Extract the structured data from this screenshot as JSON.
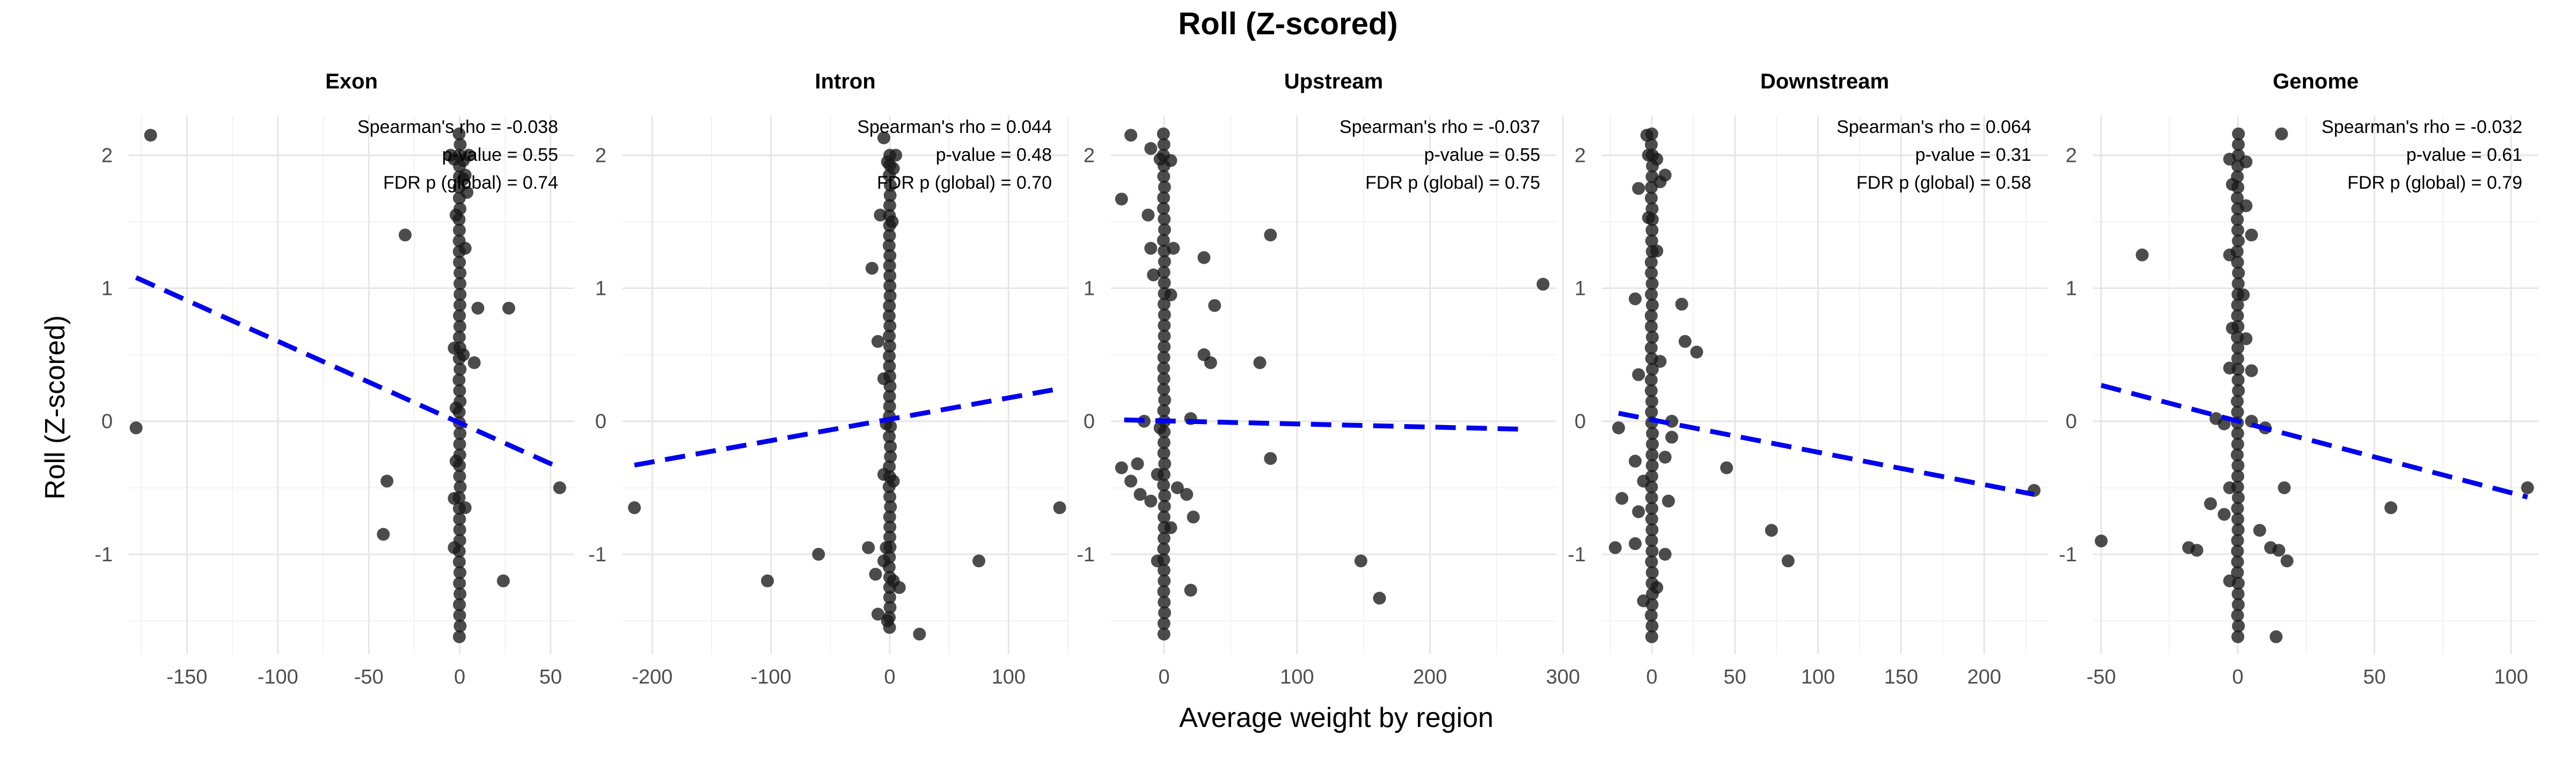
{
  "chart_data": {
    "type": "scatter",
    "title": "Roll (Z-scored)",
    "xlabel": "Average weight by region",
    "ylabel": "Roll (Z-scored)",
    "ylim": [
      -1.75,
      2.3
    ],
    "y_ticks": [
      -1,
      0,
      1,
      2
    ],
    "grid": true,
    "legend": "none",
    "fit_line_color": "#0000ee",
    "point_color": "#1a1a1a",
    "panels": [
      {
        "name": "Exon",
        "xlim": [
          -182,
          63
        ],
        "x_ticks": [
          -150,
          -100,
          -50,
          0,
          50
        ],
        "annotation": [
          "Spearman's rho = -0.038",
          "p-value = 0.55",
          "FDR p (global) = 0.74"
        ],
        "fit": [
          [
            -178,
            1.08
          ],
          [
            55,
            -0.35
          ]
        ],
        "cluster": [
          -1.62,
          2.16
        ],
        "points": [
          [
            -170,
            2.15
          ],
          [
            -178,
            -0.05
          ],
          [
            -30,
            1.4
          ],
          [
            -40,
            -0.45
          ],
          [
            -42,
            -0.85
          ],
          [
            -5,
            2.0
          ],
          [
            -3,
            1.97
          ],
          [
            2,
            1.96
          ],
          [
            3,
            1.85
          ],
          [
            5,
            2.0
          ],
          [
            4,
            1.72
          ],
          [
            -2,
            1.55
          ],
          [
            2,
            1.82
          ],
          [
            10,
            0.85
          ],
          [
            8,
            0.44
          ],
          [
            27,
            0.85
          ],
          [
            24,
            -1.2
          ],
          [
            55,
            -0.5
          ],
          [
            -3,
            0.55
          ],
          [
            -2,
            -0.3
          ],
          [
            -3,
            -0.58
          ],
          [
            3,
            -0.65
          ],
          [
            -2,
            0.1
          ],
          [
            3,
            1.3
          ],
          [
            2,
            0.5
          ],
          [
            -3,
            -0.95
          ]
        ]
      },
      {
        "name": "Intron",
        "xlim": [
          -225,
          150
        ],
        "x_ticks": [
          -200,
          -100,
          0,
          100
        ],
        "annotation": [
          "Spearman's rho = 0.044",
          "p-value = 0.48",
          "FDR p (global) = 0.70"
        ],
        "fit": [
          [
            -215,
            -0.33
          ],
          [
            140,
            0.24
          ]
        ],
        "cluster": [
          -1.55,
          2.0
        ],
        "points": [
          [
            -5,
            2.13
          ],
          [
            5,
            2.0
          ],
          [
            -2,
            1.95
          ],
          [
            3,
            1.9
          ],
          [
            -8,
            1.55
          ],
          [
            2,
            1.5
          ],
          [
            -15,
            1.15
          ],
          [
            -10,
            0.6
          ],
          [
            -5,
            0.32
          ],
          [
            -3,
            -0.02
          ],
          [
            -5,
            -0.4
          ],
          [
            3,
            -0.45
          ],
          [
            -3,
            -0.95
          ],
          [
            -5,
            -1.05
          ],
          [
            -18,
            -0.95
          ],
          [
            -12,
            -1.15
          ],
          [
            3,
            -1.2
          ],
          [
            8,
            -1.25
          ],
          [
            -10,
            -1.45
          ],
          [
            -2,
            -1.5
          ],
          [
            25,
            -1.6
          ],
          [
            75,
            -1.05
          ],
          [
            -215,
            -0.65
          ],
          [
            -103,
            -1.2
          ],
          [
            -60,
            -1.0
          ],
          [
            143,
            -0.65
          ]
        ]
      },
      {
        "name": "Upstream",
        "xlim": [
          -40,
          295
        ],
        "x_ticks": [
          0,
          100,
          200,
          300
        ],
        "annotation": [
          "Spearman's rho = -0.037",
          "p-value = 0.55",
          "FDR p (global) = 0.75"
        ],
        "fit": [
          [
            -30,
            0.01
          ],
          [
            270,
            -0.06
          ]
        ],
        "cluster": [
          -1.6,
          2.16
        ],
        "points": [
          [
            -25,
            2.15
          ],
          [
            -10,
            2.05
          ],
          [
            -3,
            1.97
          ],
          [
            5,
            1.96
          ],
          [
            -32,
            1.67
          ],
          [
            -12,
            1.55
          ],
          [
            -10,
            1.3
          ],
          [
            7,
            1.3
          ],
          [
            -8,
            1.1
          ],
          [
            5,
            0.95
          ],
          [
            30,
            1.23
          ],
          [
            80,
            1.4
          ],
          [
            38,
            0.87
          ],
          [
            30,
            0.5
          ],
          [
            35,
            0.44
          ],
          [
            72,
            0.44
          ],
          [
            20,
            0.02
          ],
          [
            -15,
            0.0
          ],
          [
            -3,
            -0.05
          ],
          [
            -32,
            -0.35
          ],
          [
            -20,
            -0.32
          ],
          [
            -25,
            -0.45
          ],
          [
            -5,
            -0.4
          ],
          [
            -18,
            -0.55
          ],
          [
            -10,
            -0.6
          ],
          [
            10,
            -0.5
          ],
          [
            17,
            -0.55
          ],
          [
            22,
            -0.72
          ],
          [
            80,
            -0.28
          ],
          [
            148,
            -1.05
          ],
          [
            162,
            -1.33
          ],
          [
            20,
            -1.27
          ],
          [
            -5,
            -1.05
          ],
          [
            5,
            -0.8
          ],
          [
            285,
            1.03
          ]
        ]
      },
      {
        "name": "Downstream",
        "xlim": [
          -30,
          238
        ],
        "x_ticks": [
          0,
          50,
          100,
          150,
          200
        ],
        "annotation": [
          "Spearman's rho = 0.064",
          "p-value = 0.31",
          "FDR p (global) = 0.58"
        ],
        "fit": [
          [
            -20,
            0.06
          ],
          [
            230,
            -0.55
          ]
        ],
        "cluster": [
          -1.62,
          2.16
        ],
        "points": [
          [
            -3,
            2.15
          ],
          [
            -2,
            2.0
          ],
          [
            3,
            1.97
          ],
          [
            5,
            1.8
          ],
          [
            8,
            1.85
          ],
          [
            -8,
            1.75
          ],
          [
            -2,
            1.53
          ],
          [
            3,
            1.28
          ],
          [
            -10,
            0.92
          ],
          [
            18,
            0.88
          ],
          [
            20,
            0.6
          ],
          [
            27,
            0.52
          ],
          [
            5,
            0.45
          ],
          [
            -8,
            0.35
          ],
          [
            -20,
            -0.05
          ],
          [
            12,
            -0.12
          ],
          [
            8,
            -0.27
          ],
          [
            -10,
            -0.3
          ],
          [
            -5,
            -0.45
          ],
          [
            -18,
            -0.58
          ],
          [
            -8,
            -0.68
          ],
          [
            -22,
            -0.95
          ],
          [
            -10,
            -0.92
          ],
          [
            10,
            -0.6
          ],
          [
            8,
            -1.0
          ],
          [
            3,
            -1.25
          ],
          [
            -5,
            -1.35
          ],
          [
            45,
            -0.35
          ],
          [
            72,
            -0.82
          ],
          [
            82,
            -1.05
          ],
          [
            230,
            -0.52
          ],
          [
            12,
            0.0
          ]
        ]
      },
      {
        "name": "Genome",
        "xlim": [
          -53,
          110
        ],
        "x_ticks": [
          -50,
          0,
          50,
          100
        ],
        "annotation": [
          "Spearman's rho = -0.032",
          "p-value = 0.61",
          "FDR p (global) = 0.79"
        ],
        "fit": [
          [
            -50,
            0.27
          ],
          [
            106,
            -0.57
          ]
        ],
        "cluster": [
          -1.62,
          2.16
        ],
        "points": [
          [
            -50,
            -0.9
          ],
          [
            -35,
            1.25
          ],
          [
            16,
            2.16
          ],
          [
            -3,
            1.97
          ],
          [
            3,
            1.95
          ],
          [
            -2,
            1.78
          ],
          [
            3,
            1.62
          ],
          [
            5,
            1.4
          ],
          [
            -3,
            1.25
          ],
          [
            2,
            0.95
          ],
          [
            -2,
            0.7
          ],
          [
            3,
            0.62
          ],
          [
            -3,
            0.4
          ],
          [
            5,
            0.38
          ],
          [
            -8,
            0.02
          ],
          [
            5,
            0.0
          ],
          [
            -5,
            -0.02
          ],
          [
            10,
            -0.05
          ],
          [
            -10,
            -0.62
          ],
          [
            -3,
            -0.5
          ],
          [
            -5,
            -0.7
          ],
          [
            -18,
            -0.95
          ],
          [
            -15,
            -0.97
          ],
          [
            8,
            -0.82
          ],
          [
            12,
            -0.95
          ],
          [
            15,
            -0.97
          ],
          [
            17,
            -0.5
          ],
          [
            18,
            -1.05
          ],
          [
            -3,
            -1.2
          ],
          [
            14,
            -1.62
          ],
          [
            56,
            -0.65
          ],
          [
            106,
            -0.5
          ]
        ]
      }
    ]
  }
}
